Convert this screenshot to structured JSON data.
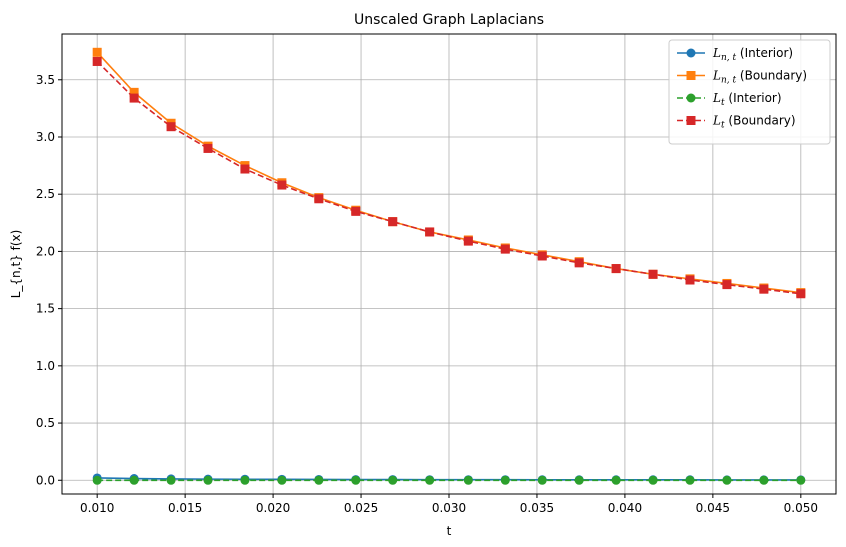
{
  "chart_data": {
    "type": "line",
    "title": "Unscaled Graph Laplacians",
    "xlabel": "t",
    "ylabel": "L_{n,t} f(x)",
    "xlim": [
      0.008,
      0.052
    ],
    "ylim": [
      -0.12,
      3.9
    ],
    "xticks": [
      "0.010",
      "0.015",
      "0.020",
      "0.025",
      "0.030",
      "0.035",
      "0.040",
      "0.045",
      "0.050"
    ],
    "xtick_values": [
      0.01,
      0.015,
      0.02,
      0.025,
      0.03,
      0.035,
      0.04,
      0.045,
      0.05
    ],
    "yticks": [
      "0.0",
      "0.5",
      "1.0",
      "1.5",
      "2.0",
      "2.5",
      "3.0",
      "3.5"
    ],
    "ytick_values": [
      0.0,
      0.5,
      1.0,
      1.5,
      2.0,
      2.5,
      3.0,
      3.5
    ],
    "grid": true,
    "legend_position": "top-right",
    "x": [
      0.01,
      0.0121,
      0.0142,
      0.0163,
      0.0184,
      0.0205,
      0.0226,
      0.0247,
      0.0268,
      0.0289,
      0.0311,
      0.0332,
      0.0353,
      0.0374,
      0.0395,
      0.0416,
      0.0437,
      0.0458,
      0.0479,
      0.05
    ],
    "series": [
      {
        "name_main": "L",
        "name_sub": "n, t",
        "name_suffix": " (Interior)",
        "color": "#1f77b4",
        "dashed": false,
        "marker": "circle",
        "values": [
          0.02,
          0.015,
          0.012,
          0.01,
          0.009,
          0.008,
          0.007,
          0.006,
          0.006,
          0.005,
          0.005,
          0.005,
          0.004,
          0.004,
          0.004,
          0.004,
          0.004,
          0.003,
          0.003,
          0.003
        ]
      },
      {
        "name_main": "L",
        "name_sub": "n, t",
        "name_suffix": " (Boundary)",
        "color": "#ff7f0e",
        "dashed": false,
        "marker": "square",
        "values": [
          3.74,
          3.39,
          3.12,
          2.92,
          2.75,
          2.6,
          2.47,
          2.36,
          2.26,
          2.17,
          2.1,
          2.03,
          1.97,
          1.91,
          1.85,
          1.8,
          1.76,
          1.72,
          1.68,
          1.64
        ]
      },
      {
        "name_main": "L",
        "name_sub": "t",
        "name_suffix": " (Interior)",
        "color": "#2ca02c",
        "dashed": true,
        "marker": "circle",
        "values": [
          0.0,
          0.0,
          0.0,
          0.0,
          0.0,
          0.0,
          0.0,
          0.0,
          0.0,
          0.0,
          0.0,
          0.0,
          0.0,
          0.0,
          0.0,
          0.0,
          0.0,
          0.0,
          0.0,
          0.0
        ]
      },
      {
        "name_main": "L",
        "name_sub": "t",
        "name_suffix": " (Boundary)",
        "color": "#d62728",
        "dashed": true,
        "marker": "square",
        "values": [
          3.66,
          3.34,
          3.09,
          2.9,
          2.72,
          2.58,
          2.46,
          2.35,
          2.26,
          2.17,
          2.09,
          2.02,
          1.96,
          1.9,
          1.85,
          1.8,
          1.75,
          1.71,
          1.67,
          1.63
        ]
      }
    ]
  }
}
